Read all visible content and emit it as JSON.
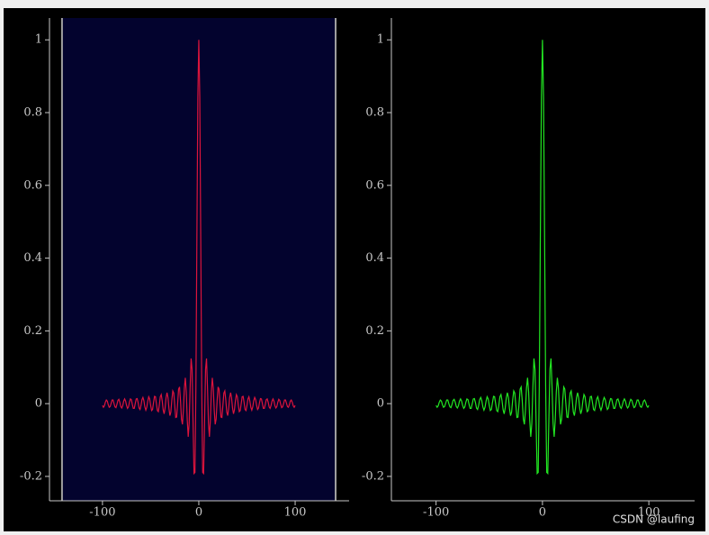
{
  "chart_data": [
    {
      "type": "line",
      "color": "#dc143c",
      "region": [
        -142,
        142
      ],
      "region_color": "#03032e",
      "xlim": [
        -155,
        156
      ],
      "ylim": [
        -0.267,
        1.06
      ],
      "xticks": [
        -100,
        0,
        100
      ],
      "yticks": [
        -0.2,
        0,
        0.2,
        0.4,
        0.6,
        0.8,
        1
      ],
      "x": [
        -100,
        -99,
        -98,
        -97,
        -96,
        -95,
        -94,
        -93,
        -92,
        -91,
        -90,
        -89,
        -88,
        -87,
        -86,
        -85,
        -84,
        -83,
        -82,
        -81,
        -80,
        -79,
        -78,
        -77,
        -76,
        -75,
        -74,
        -73,
        -72,
        -71,
        -70,
        -69,
        -68,
        -67,
        -66,
        -65,
        -64,
        -63,
        -62,
        -61,
        -60,
        -59,
        -58,
        -57,
        -56,
        -55,
        -54,
        -53,
        -52,
        -51,
        -50,
        -49,
        -48,
        -47,
        -46,
        -45,
        -44,
        -43,
        -42,
        -41,
        -40,
        -39,
        -38,
        -37,
        -36,
        -35,
        -34,
        -33,
        -32,
        -31,
        -30,
        -29,
        -28,
        -27,
        -26,
        -25,
        -24,
        -23,
        -22,
        -21,
        -20,
        -19,
        -18,
        -17,
        -16,
        -15,
        -14,
        -13,
        -12,
        -11,
        -10,
        -9,
        -8,
        -7,
        -6,
        -5,
        -4,
        -3,
        -2,
        -1,
        0,
        1,
        2,
        3,
        4,
        5,
        6,
        7,
        8,
        9,
        10,
        11,
        12,
        13,
        14,
        15,
        16,
        17,
        18,
        19,
        20,
        21,
        22,
        23,
        24,
        25,
        26,
        27,
        28,
        29,
        30,
        31,
        32,
        33,
        34,
        35,
        36,
        37,
        38,
        39,
        40,
        41,
        42,
        43,
        44,
        45,
        46,
        47,
        48,
        49,
        50,
        51,
        52,
        53,
        54,
        55,
        56,
        57,
        58,
        59,
        60,
        61,
        62,
        63,
        64,
        65,
        66,
        67,
        68,
        69,
        70,
        71,
        72,
        73,
        74,
        75,
        76,
        77,
        78,
        79,
        80,
        81,
        82,
        83,
        84,
        85,
        86,
        87,
        88,
        89,
        90,
        91,
        92,
        93,
        94,
        95,
        96,
        97,
        98,
        99,
        100
      ],
      "values": [
        -0.005,
        -0.01,
        -0.006,
        0.004,
        0.01,
        0.007,
        -0.003,
        -0.01,
        -0.008,
        0.001,
        0.01,
        0.01,
        0,
        -0.009,
        -0.011,
        -0.002,
        0.009,
        0.012,
        0.004,
        -0.008,
        -0.012,
        -0.006,
        0.007,
        0.013,
        0.007,
        -0.005,
        -0.013,
        -0.009,
        0.004,
        0.013,
        0.011,
        -0.002,
        -0.013,
        -0.013,
        0,
        0.013,
        0.014,
        0.003,
        -0.012,
        -0.016,
        -0.005,
        0.011,
        0.017,
        0.008,
        -0.009,
        -0.018,
        -0.01,
        0.007,
        0.019,
        0.013,
        -0.005,
        -0.019,
        -0.016,
        0.003,
        0.02,
        0.019,
        0,
        -0.019,
        -0.022,
        -0.004,
        0.019,
        0.025,
        0.008,
        -0.017,
        -0.028,
        -0.012,
        0.016,
        0.03,
        0.017,
        -0.013,
        -0.033,
        -0.023,
        0.01,
        0.035,
        0.029,
        -0.005,
        -0.038,
        -0.037,
        0,
        0.04,
        0.046,
        0.008,
        -0.042,
        -0.057,
        -0.018,
        0.043,
        0.071,
        0.032,
        -0.045,
        -0.091,
        -0.054,
        0.046,
        0.124,
        0.094,
        -0.047,
        -0.192,
        -0.189,
        0.047,
        0.455,
        0.841,
        1,
        0.841,
        0.455,
        0.047,
        -0.189,
        -0.192,
        -0.047,
        0.094,
        0.124,
        0.046,
        -0.054,
        -0.091,
        -0.045,
        0.032,
        0.071,
        0.043,
        -0.018,
        -0.057,
        -0.042,
        0.008,
        0.046,
        0.04,
        0,
        -0.037,
        -0.038,
        -0.005,
        0.029,
        0.035,
        0.01,
        -0.023,
        -0.033,
        -0.013,
        0.017,
        0.03,
        0.016,
        -0.012,
        -0.028,
        -0.017,
        0.008,
        0.025,
        0.019,
        -0.004,
        -0.022,
        -0.019,
        0,
        0.019,
        0.02,
        0.003,
        -0.016,
        -0.019,
        -0.005,
        0.013,
        0.019,
        0.007,
        -0.01,
        -0.018,
        -0.009,
        0.008,
        0.017,
        0.011,
        -0.005,
        -0.016,
        -0.012,
        0.003,
        0.014,
        0.013,
        0,
        -0.013,
        -0.013,
        -0.002,
        0.011,
        0.013,
        0.004,
        -0.009,
        -0.013,
        -0.005,
        0.007,
        0.013,
        0.007,
        -0.006,
        -0.012,
        -0.008,
        0.004,
        0.012,
        0.009,
        -0.002,
        -0.011,
        -0.009,
        0,
        0.01,
        0.01,
        0.001,
        -0.008,
        -0.01,
        -0.003,
        0.007,
        0.01,
        0.004,
        -0.006,
        -0.01,
        -0.005
      ]
    },
    {
      "type": "line",
      "color": "#22e622",
      "xlim": [
        -142,
        143
      ],
      "ylim": [
        -0.267,
        1.06
      ],
      "xticks": [
        -100,
        0,
        100
      ],
      "yticks": [
        -0.2,
        0,
        0.2,
        0.4,
        0.6,
        0.8,
        1
      ],
      "x": [
        -100,
        -99,
        -98,
        -97,
        -96,
        -95,
        -94,
        -93,
        -92,
        -91,
        -90,
        -89,
        -88,
        -87,
        -86,
        -85,
        -84,
        -83,
        -82,
        -81,
        -80,
        -79,
        -78,
        -77,
        -76,
        -75,
        -74,
        -73,
        -72,
        -71,
        -70,
        -69,
        -68,
        -67,
        -66,
        -65,
        -64,
        -63,
        -62,
        -61,
        -60,
        -59,
        -58,
        -57,
        -56,
        -55,
        -54,
        -53,
        -52,
        -51,
        -50,
        -49,
        -48,
        -47,
        -46,
        -45,
        -44,
        -43,
        -42,
        -41,
        -40,
        -39,
        -38,
        -37,
        -36,
        -35,
        -34,
        -33,
        -32,
        -31,
        -30,
        -29,
        -28,
        -27,
        -26,
        -25,
        -24,
        -23,
        -22,
        -21,
        -20,
        -19,
        -18,
        -17,
        -16,
        -15,
        -14,
        -13,
        -12,
        -11,
        -10,
        -9,
        -8,
        -7,
        -6,
        -5,
        -4,
        -3,
        -2,
        -1,
        0,
        1,
        2,
        3,
        4,
        5,
        6,
        7,
        8,
        9,
        10,
        11,
        12,
        13,
        14,
        15,
        16,
        17,
        18,
        19,
        20,
        21,
        22,
        23,
        24,
        25,
        26,
        27,
        28,
        29,
        30,
        31,
        32,
        33,
        34,
        35,
        36,
        37,
        38,
        39,
        40,
        41,
        42,
        43,
        44,
        45,
        46,
        47,
        48,
        49,
        50,
        51,
        52,
        53,
        54,
        55,
        56,
        57,
        58,
        59,
        60,
        61,
        62,
        63,
        64,
        65,
        66,
        67,
        68,
        69,
        70,
        71,
        72,
        73,
        74,
        75,
        76,
        77,
        78,
        79,
        80,
        81,
        82,
        83,
        84,
        85,
        86,
        87,
        88,
        89,
        90,
        91,
        92,
        93,
        94,
        95,
        96,
        97,
        98,
        99,
        100
      ],
      "values": [
        -0.005,
        -0.01,
        -0.006,
        0.004,
        0.01,
        0.007,
        -0.003,
        -0.01,
        -0.008,
        0.001,
        0.01,
        0.01,
        0,
        -0.009,
        -0.011,
        -0.002,
        0.009,
        0.012,
        0.004,
        -0.008,
        -0.012,
        -0.006,
        0.007,
        0.013,
        0.007,
        -0.005,
        -0.013,
        -0.009,
        0.004,
        0.013,
        0.011,
        -0.002,
        -0.013,
        -0.013,
        0,
        0.013,
        0.014,
        0.003,
        -0.012,
        -0.016,
        -0.005,
        0.011,
        0.017,
        0.008,
        -0.009,
        -0.018,
        -0.01,
        0.007,
        0.019,
        0.013,
        -0.005,
        -0.019,
        -0.016,
        0.003,
        0.02,
        0.019,
        0,
        -0.019,
        -0.022,
        -0.004,
        0.019,
        0.025,
        0.008,
        -0.017,
        -0.028,
        -0.012,
        0.016,
        0.03,
        0.017,
        -0.013,
        -0.033,
        -0.023,
        0.01,
        0.035,
        0.029,
        -0.005,
        -0.038,
        -0.037,
        0,
        0.04,
        0.046,
        0.008,
        -0.042,
        -0.057,
        -0.018,
        0.043,
        0.071,
        0.032,
        -0.045,
        -0.091,
        -0.054,
        0.046,
        0.124,
        0.094,
        -0.047,
        -0.192,
        -0.189,
        0.047,
        0.455,
        0.841,
        1,
        0.841,
        0.455,
        0.047,
        -0.189,
        -0.192,
        -0.047,
        0.094,
        0.124,
        0.046,
        -0.054,
        -0.091,
        -0.045,
        0.032,
        0.071,
        0.043,
        -0.018,
        -0.057,
        -0.042,
        0.008,
        0.046,
        0.04,
        0,
        -0.037,
        -0.038,
        -0.005,
        0.029,
        0.035,
        0.01,
        -0.023,
        -0.033,
        -0.013,
        0.017,
        0.03,
        0.016,
        -0.012,
        -0.028,
        -0.017,
        0.008,
        0.025,
        0.019,
        -0.004,
        -0.022,
        -0.019,
        0,
        0.019,
        0.02,
        0.003,
        -0.016,
        -0.019,
        -0.005,
        0.013,
        0.019,
        0.007,
        -0.01,
        -0.018,
        -0.009,
        0.008,
        0.017,
        0.011,
        -0.005,
        -0.016,
        -0.012,
        0.003,
        0.014,
        0.013,
        0,
        -0.013,
        -0.013,
        -0.002,
        0.011,
        0.013,
        0.004,
        -0.009,
        -0.013,
        -0.005,
        0.007,
        0.013,
        0.007,
        -0.006,
        -0.012,
        -0.008,
        0.004,
        0.012,
        0.009,
        -0.002,
        -0.011,
        -0.009,
        0,
        0.01,
        0.01,
        0.001,
        -0.008,
        -0.01,
        -0.003,
        0.007,
        0.01,
        0.004,
        -0.006,
        -0.01,
        -0.005
      ]
    }
  ],
  "watermark": "CSDN @laufing"
}
